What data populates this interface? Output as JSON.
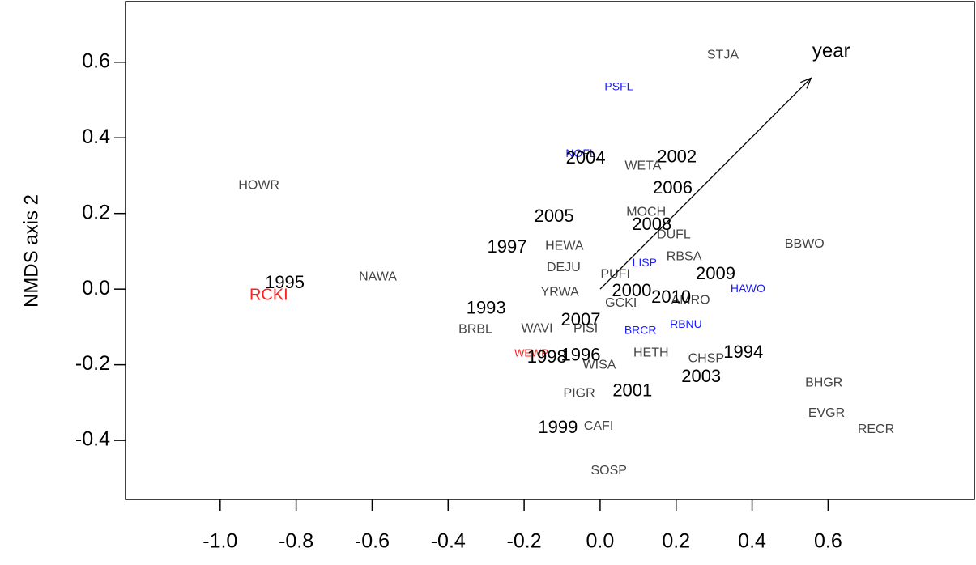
{
  "chart_data": {
    "type": "scatter",
    "y_label": "NMDS axis 2",
    "xlim": [
      -1.249,
      0.985
    ],
    "ylim": [
      -0.556,
      0.76
    ],
    "xticks": [
      {
        "value": -1,
        "label": "-1.0"
      },
      {
        "value": -0.8,
        "label": "-0.8"
      },
      {
        "value": -0.6,
        "label": "-0.6"
      },
      {
        "value": -0.4,
        "label": "-0.4"
      },
      {
        "value": -0.2,
        "label": "-0.2"
      },
      {
        "value": 0,
        "label": "0.0"
      },
      0.2,
      0.4,
      0.6
    ],
    "yticks": [
      0.6,
      0.4,
      0.2,
      {
        "value": 0,
        "label": "0.0"
      },
      -0.2,
      -0.4
    ],
    "series": [
      {
        "color": "#444444",
        "labels": [
          "STJA",
          "WETA",
          "HOWR",
          "MOCH",
          "DUFL",
          "BBWO",
          "HEWA",
          "RBSA",
          "DEJU",
          "PUFI",
          "NAWA",
          "YRWA",
          "AMRO",
          "GCKI",
          "BRBL",
          "WAVI",
          "PISI",
          "HETH",
          "CHSP",
          "WISA",
          "BHGR",
          "PIGR",
          "EVGR",
          "CAFI",
          "RECR",
          "SOSP"
        ],
        "x": [
          0.323,
          0.113,
          -0.898,
          0.121,
          0.194,
          0.538,
          -0.094,
          0.221,
          -0.096,
          0.04,
          -0.585,
          -0.106,
          0.238,
          0.055,
          -0.328,
          -0.166,
          -0.038,
          0.134,
          0.279,
          -0.002,
          0.589,
          -0.055,
          0.596,
          -0.004,
          0.726,
          0.023
        ],
        "y": [
          0.618,
          0.325,
          0.274,
          0.203,
          0.143,
          0.118,
          0.113,
          0.085,
          0.056,
          0.038,
          0.032,
          -0.009,
          -0.03,
          -0.038,
          -0.107,
          -0.105,
          -0.105,
          -0.169,
          -0.184,
          -0.201,
          -0.248,
          -0.276,
          -0.329,
          -0.363,
          -0.372,
          -0.481
        ]
      },
      {
        "color": "#1a1aff",
        "labels": [
          "PSFL",
          "NOFL",
          "LISP",
          "HAWO",
          "BRCR",
          "RBNU"
        ],
        "x": [
          0.049,
          -0.051,
          0.117,
          0.389,
          0.106,
          0.226
        ],
        "y": [
          0.534,
          0.357,
          0.068,
          0.0,
          -0.111,
          -0.094
        ]
      },
      {
        "color": "#ff2020",
        "labels": [
          "WEWP"
        ],
        "x": [
          -0.181
        ],
        "y": [
          -0.171
        ]
      },
      {
        "color": "#ff2020",
        "labels": [
          "RCKI"
        ],
        "x": [
          -0.872
        ],
        "y": [
          -0.017
        ]
      },
      {
        "color": "#000000",
        "labels": [
          "2002",
          "2004",
          "2006",
          "2005",
          "2008",
          "1997",
          "2009",
          "1995",
          "2000",
          "2010",
          "1993",
          "2007",
          "1998",
          "1996",
          "1994",
          "2003",
          "2001",
          "1999"
        ],
        "x": [
          0.202,
          -0.038,
          0.191,
          -0.121,
          0.136,
          -0.245,
          0.304,
          -0.83,
          0.083,
          0.187,
          -0.3,
          -0.051,
          -0.14,
          -0.051,
          0.377,
          0.266,
          0.085,
          -0.111
        ],
        "y": [
          0.348,
          0.344,
          0.265,
          0.19,
          0.169,
          0.109,
          0.038,
          0.015,
          -0.006,
          -0.024,
          -0.053,
          -0.083,
          -0.182,
          -0.177,
          -0.169,
          -0.233,
          -0.271,
          -0.368
        ]
      }
    ],
    "arrow": {
      "label": "year",
      "x": 0.555,
      "y": 0.558
    }
  }
}
